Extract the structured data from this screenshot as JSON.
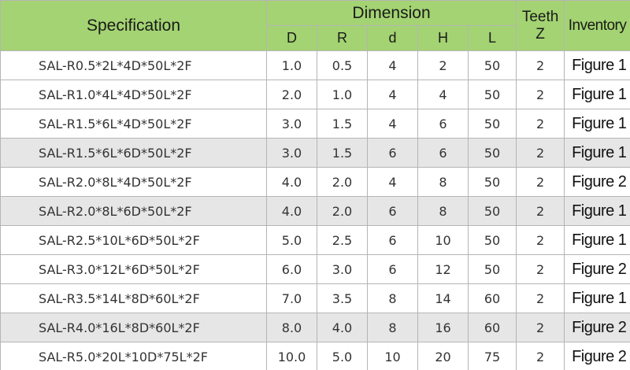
{
  "header": {
    "specification": "Specification",
    "dimension": "Dimension",
    "columns": [
      "D",
      "R",
      "d",
      "H",
      "L"
    ],
    "teeth": [
      "Teeth",
      "Z"
    ],
    "inventory": "Inventory"
  },
  "table": {
    "rows": [
      [
        "SAL-R0.5*2L*4D*50L*2F",
        "1.0",
        "0.5",
        "4",
        "2",
        "50",
        "2",
        "Figure 1"
      ],
      [
        "SAL-R1.0*4L*4D*50L*2F",
        "2.0",
        "1.0",
        "4",
        "4",
        "50",
        "2",
        "Figure 1"
      ],
      [
        "SAL-R1.5*6L*4D*50L*2F",
        "3.0",
        "1.5",
        "4",
        "6",
        "50",
        "2",
        "Figure 1"
      ],
      [
        "SAL-R1.5*6L*6D*50L*2F",
        "3.0",
        "1.5",
        "6",
        "6",
        "50",
        "2",
        "Figure 1"
      ],
      [
        "SAL-R2.0*8L*4D*50L*2F",
        "4.0",
        "2.0",
        "4",
        "8",
        "50",
        "2",
        "Figure 2"
      ],
      [
        "SAL-R2.0*8L*6D*50L*2F",
        "4.0",
        "2.0",
        "6",
        "8",
        "50",
        "2",
        "Figure 1"
      ],
      [
        "SAL-R2.5*10L*6D*50L*2F",
        "5.0",
        "2.5",
        "6",
        "10",
        "50",
        "2",
        "Figure 1"
      ],
      [
        "SAL-R3.0*12L*6D*50L*2F",
        "6.0",
        "3.0",
        "6",
        "12",
        "50",
        "2",
        "Figure 2"
      ],
      [
        "SAL-R3.5*14L*8D*60L*2F",
        "7.0",
        "3.5",
        "8",
        "14",
        "60",
        "2",
        "Figure 1"
      ],
      [
        "SAL-R4.0*16L*8D*60L*2F",
        "8.0",
        "4.0",
        "8",
        "16",
        "60",
        "2",
        "Figure 2"
      ],
      [
        "SAL-R5.0*20L*10D*75L*2F",
        "10.0",
        "5.0",
        "10",
        "20",
        "75",
        "2",
        "Figure 2"
      ]
    ]
  }
}
